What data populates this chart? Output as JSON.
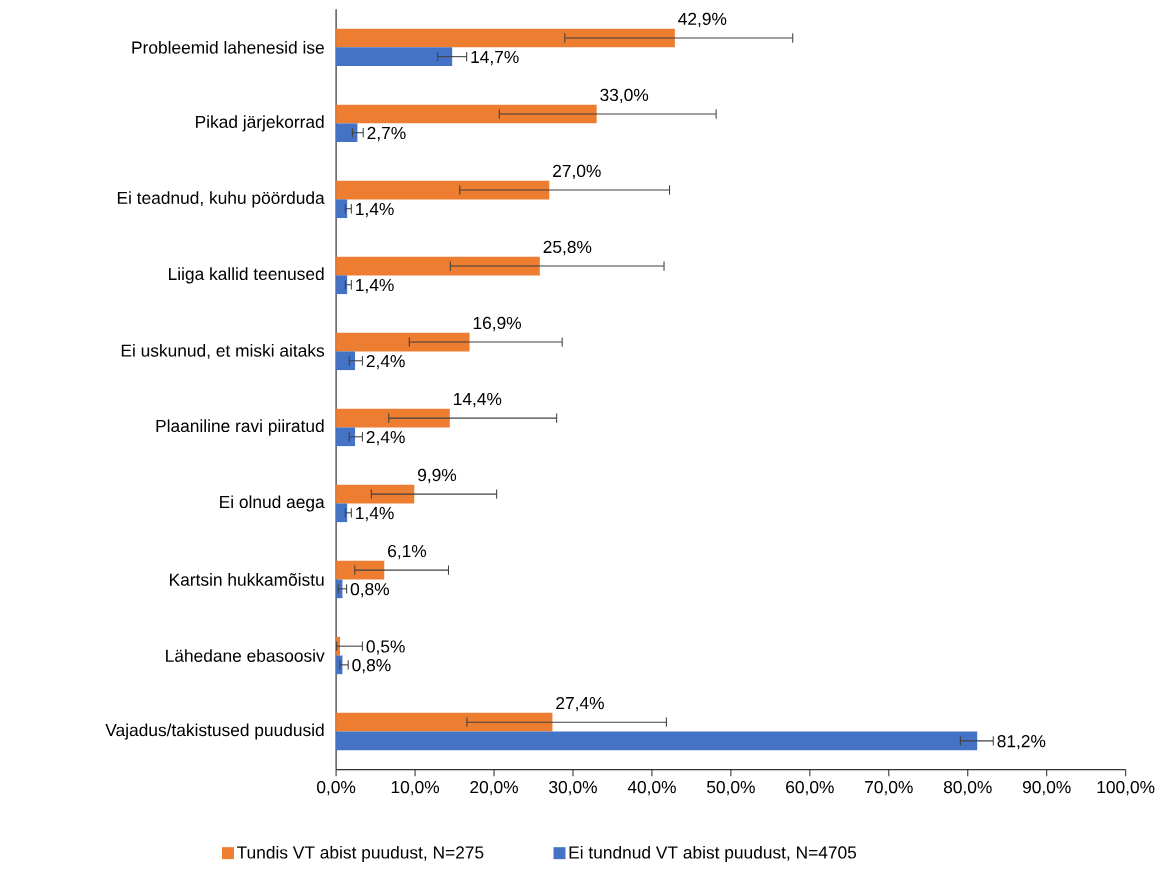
{
  "chart_data": {
    "type": "bar",
    "orientation": "horizontal",
    "categories": [
      "Probleemid lahenesid ise",
      "Pikad järjekorrad",
      "Ei teadnud, kuhu pöörduda",
      "Liiga kallid teenused",
      "Ei uskunud, et miski aitaks",
      "Plaaniline ravi piiratud",
      "Ei olnud aega",
      "Kartsin hukkamõistu",
      "Lähedane ebasoosiv",
      "Vajadus/takistused puudusid"
    ],
    "series": [
      {
        "name": "Tundis VT abist puudust, N=275",
        "color": "#ed7d31",
        "values": [
          42.9,
          33.0,
          27.0,
          25.8,
          16.9,
          14.4,
          9.9,
          6.1,
          0.5,
          27.4
        ],
        "errors": [
          [
            28.9,
            57.9
          ],
          [
            20.6,
            48.2
          ],
          [
            15.6,
            42.3
          ],
          [
            14.4,
            41.6
          ],
          [
            9.2,
            28.7
          ],
          [
            6.6,
            28.0
          ],
          [
            4.4,
            20.4
          ],
          [
            2.3,
            14.3
          ],
          [
            0.0,
            3.4
          ],
          [
            16.5,
            41.9
          ]
        ],
        "value_labels": [
          "42,9%",
          "33,0%",
          "27,0%",
          "25,8%",
          "16,9%",
          "14,4%",
          "9,9%",
          "6,1%",
          "0,5%",
          "27,4%"
        ]
      },
      {
        "name": "Ei tundnud VT abist puudust, N=4705",
        "color": "#4472c4",
        "values": [
          14.7,
          2.7,
          1.4,
          1.4,
          2.4,
          2.4,
          1.4,
          0.8,
          0.8,
          81.2
        ],
        "errors": [
          [
            12.8,
            16.6
          ],
          [
            2.0,
            3.5
          ],
          [
            1.1,
            2.0
          ],
          [
            1.1,
            2.0
          ],
          [
            1.6,
            3.4
          ],
          [
            1.6,
            3.4
          ],
          [
            1.1,
            2.0
          ],
          [
            0.2,
            1.4
          ],
          [
            0.4,
            1.6
          ],
          [
            79.0,
            83.3
          ]
        ],
        "value_labels": [
          "14,7%",
          "2,7%",
          "1,4%",
          "1,4%",
          "2,4%",
          "2,4%",
          "1,4%",
          "0,8%",
          "0,8%",
          "81,2%"
        ]
      }
    ],
    "xlim": [
      0,
      100
    ],
    "xticks": [
      {
        "value": 0,
        "label": "0,0%"
      },
      {
        "value": 10,
        "label": "10,0%"
      },
      {
        "value": 20,
        "label": "20,0%"
      },
      {
        "value": 30,
        "label": "30,0%"
      },
      {
        "value": 40,
        "label": "40,0%"
      },
      {
        "value": 50,
        "label": "50,0%"
      },
      {
        "value": 60,
        "label": "60,0%"
      },
      {
        "value": 70,
        "label": "70,0%"
      },
      {
        "value": 80,
        "label": "80,0%"
      },
      {
        "value": 90,
        "label": "90,0%"
      },
      {
        "value": 100,
        "label": "100,0%"
      }
    ],
    "legend": "bottom"
  }
}
